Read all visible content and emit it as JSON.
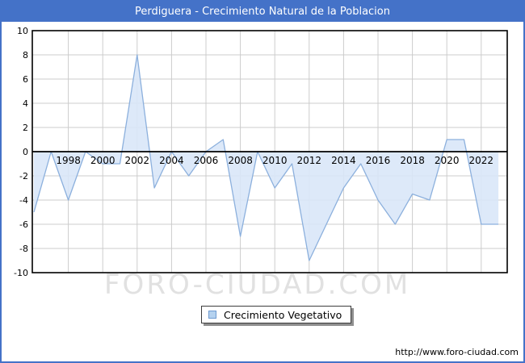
{
  "window": {
    "title": "Perdiguera - Crecimiento Natural de la Poblacion"
  },
  "legend": {
    "label": "Crecimiento Vegetativo"
  },
  "watermark": {
    "text": "FORO-CIUDAD.COM"
  },
  "footer": {
    "url": "http://www.foro-ciudad.com"
  },
  "chart_data": {
    "type": "area",
    "title": "Perdiguera - Crecimiento Natural de la Poblacion",
    "series_name": "Crecimiento Vegetativo",
    "x": [
      1996,
      1997,
      1998,
      1999,
      2000,
      2001,
      2002,
      2003,
      2004,
      2005,
      2006,
      2007,
      2008,
      2009,
      2010,
      2011,
      2012,
      2013,
      2014,
      2015,
      2016,
      2017,
      2018,
      2019,
      2020,
      2021,
      2022,
      2023
    ],
    "values": [
      -5,
      0,
      -4,
      0,
      -1,
      -1,
      8,
      -3,
      0,
      -2,
      0,
      1,
      -7,
      0,
      -3,
      -1,
      -9,
      -6,
      -3,
      -1,
      -4,
      -6,
      -3.5,
      -4,
      1,
      1,
      -6,
      -6
    ],
    "xtick_labels": [
      "1998",
      "2000",
      "2002",
      "2004",
      "2006",
      "2008",
      "2010",
      "2012",
      "2014",
      "2016",
      "2018",
      "2020",
      "2022"
    ],
    "ylim": [
      -10,
      10
    ],
    "ytick_step": 2,
    "baseline": 0,
    "grid": true,
    "legend_position": "bottom-center",
    "colors": {
      "fill": "#d9e7f8",
      "line": "#8cb0dd",
      "grid": "#cccccc",
      "axis": "#000000",
      "header": "#4472c8",
      "watermark": "#e1e1e1"
    }
  }
}
